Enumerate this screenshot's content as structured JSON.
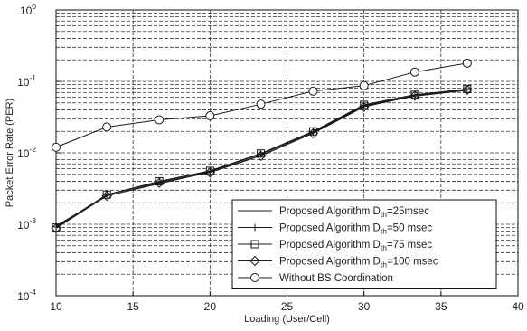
{
  "chart_data": {
    "type": "line",
    "xlabel": "Loading (User/Cell)",
    "ylabel": "Packet Error Rate (PER)",
    "xlim": [
      10,
      40
    ],
    "ylim": [
      0.0001,
      1
    ],
    "yscale": "log",
    "grid": true,
    "legend_position": "bottom-right",
    "x_ticks": [
      "10",
      "15",
      "20",
      "25",
      "30",
      "35",
      "40"
    ],
    "y_ticks": [
      {
        "base": "10",
        "exp": "0"
      },
      {
        "base": "10",
        "exp": "-1"
      },
      {
        "base": "10",
        "exp": "-2"
      },
      {
        "base": "10",
        "exp": "-3"
      },
      {
        "base": "10",
        "exp": "-4"
      }
    ],
    "x": [
      10,
      13.3,
      16.7,
      20,
      23.3,
      26.7,
      30,
      33.3,
      36.7
    ],
    "series": [
      {
        "name": "Proposed Algorithm D_th=25msec",
        "legend_pre": "Proposed Algorithm D",
        "legend_sub": "th",
        "legend_post": "=25msec",
        "marker": "none",
        "values": [
          0.00095,
          0.0025,
          0.0037,
          0.0054,
          0.0092,
          0.019,
          0.045,
          0.062,
          0.075
        ]
      },
      {
        "name": "Proposed Algorithm D_th=50 msec",
        "legend_pre": "Proposed Algorithm D",
        "legend_sub": "th",
        "legend_post": "=50 msec",
        "marker": "plus",
        "values": [
          0.00092,
          0.0026,
          0.0039,
          0.0055,
          0.0096,
          0.0195,
          0.046,
          0.064,
          0.077
        ]
      },
      {
        "name": "Proposed Algorithm D_th=75 msec",
        "legend_pre": "Proposed Algorithm D",
        "legend_sub": "th",
        "legend_post": "=75 msec",
        "marker": "square",
        "values": [
          0.0009,
          0.0026,
          0.004,
          0.0056,
          0.0098,
          0.02,
          0.047,
          0.065,
          0.078
        ]
      },
      {
        "name": "Proposed Algorithm D_th=100 msec",
        "legend_pre": "Proposed Algorithm D",
        "legend_sub": "th",
        "legend_post": "=100 msec",
        "marker": "diamond",
        "values": [
          0.00088,
          0.0025,
          0.0038,
          0.0053,
          0.0091,
          0.0188,
          0.044,
          0.063,
          0.076
        ]
      },
      {
        "name": "Without BS Coordination",
        "legend_pre": "Without BS Coordination",
        "legend_sub": "",
        "legend_post": "",
        "marker": "circle",
        "values": [
          0.012,
          0.023,
          0.029,
          0.033,
          0.048,
          0.073,
          0.087,
          0.135,
          0.18
        ]
      }
    ]
  },
  "colors": {
    "line": "#1a1a1a",
    "grid": "#333333",
    "background": "#ffffff"
  }
}
